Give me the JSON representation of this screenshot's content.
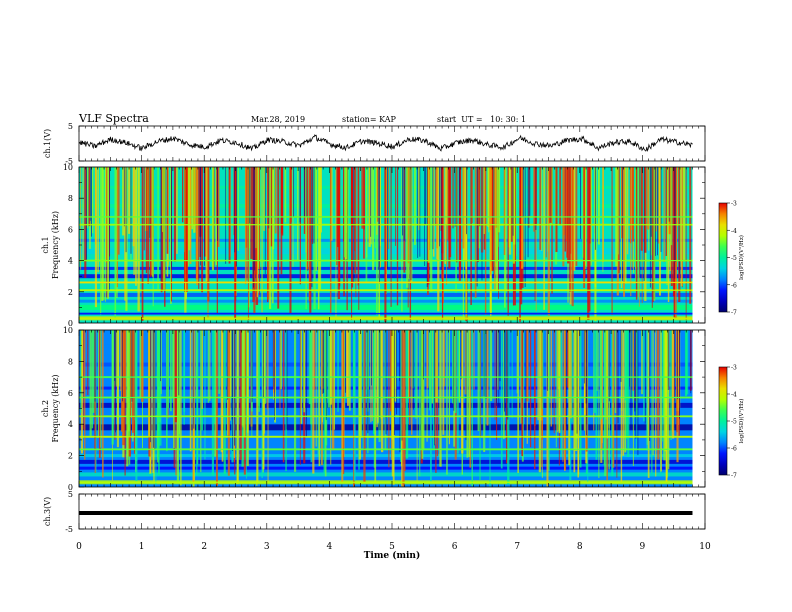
{
  "header": {
    "title": "VLF Spectra",
    "date": "Mar.28, 2019",
    "station": "station= KAP",
    "start": "start  UT =   10: 30: 1"
  },
  "chart_data": [
    {
      "type": "line",
      "ylabel": "ch.1(V)",
      "ylim": [
        -5,
        5
      ],
      "yticks": [
        -5,
        5
      ],
      "xlim": [
        0,
        10
      ],
      "x_extent": [
        0,
        9.8
      ],
      "note_values": "continuous noisy waveform oscillating roughly between -2 and +2 V",
      "values": [
        0.4,
        -0.8,
        1.2,
        0.2,
        -1.4,
        0.6,
        1.5,
        -0.3,
        -1.0,
        0.9,
        0.3,
        -1.6,
        1.1,
        0.5,
        -0.6,
        1.8,
        -0.2,
        -1.2,
        0.7,
        0.1,
        -0.9,
        1.3,
        0.8,
        -1.5,
        0.2,
        1.0,
        -0.4,
        -1.1,
        1.6,
        0.0,
        -0.7,
        0.9,
        1.4,
        -1.3,
        0.3,
        0.6,
        -1.8,
        1.2,
        0.4,
        -0.5
      ]
    },
    {
      "type": "heatmap",
      "ylabel": "ch.1\nFrequency (kHz)",
      "ylim": [
        0,
        10
      ],
      "yticks": [
        0,
        2,
        4,
        6,
        8,
        10
      ],
      "xlim": [
        0,
        10
      ],
      "x_extent": [
        0,
        9.8
      ],
      "colorbar": {
        "label": "log(PSD)(V²/Hz)",
        "range": [
          -7,
          -3
        ],
        "ticks": [
          -3,
          -4,
          -5,
          -6,
          -7
        ]
      }
    },
    {
      "type": "heatmap",
      "ylabel": "ch.2\nFrequency (kHz)",
      "ylim": [
        0,
        10
      ],
      "yticks": [
        0,
        2,
        4,
        6,
        8,
        10
      ],
      "xlim": [
        0,
        10
      ],
      "x_extent": [
        0,
        9.8
      ],
      "colorbar": {
        "label": "log(PSD)(V²/Hz)",
        "range": [
          -7,
          -3
        ],
        "ticks": [
          -3,
          -4,
          -5,
          -6,
          -7
        ]
      }
    },
    {
      "type": "line",
      "ylabel": "ch.3(V)",
      "ylim": [
        -5,
        5
      ],
      "yticks": [
        -5,
        5
      ],
      "xlim": [
        0,
        10
      ],
      "x_extent": [
        0,
        9.8
      ],
      "values": [
        0,
        0
      ]
    }
  ],
  "xaxis": {
    "label": "Time (min)",
    "ticks": [
      "0",
      "1",
      "2",
      "3",
      "4",
      "5",
      "6",
      "7",
      "8",
      "9",
      "10"
    ]
  }
}
